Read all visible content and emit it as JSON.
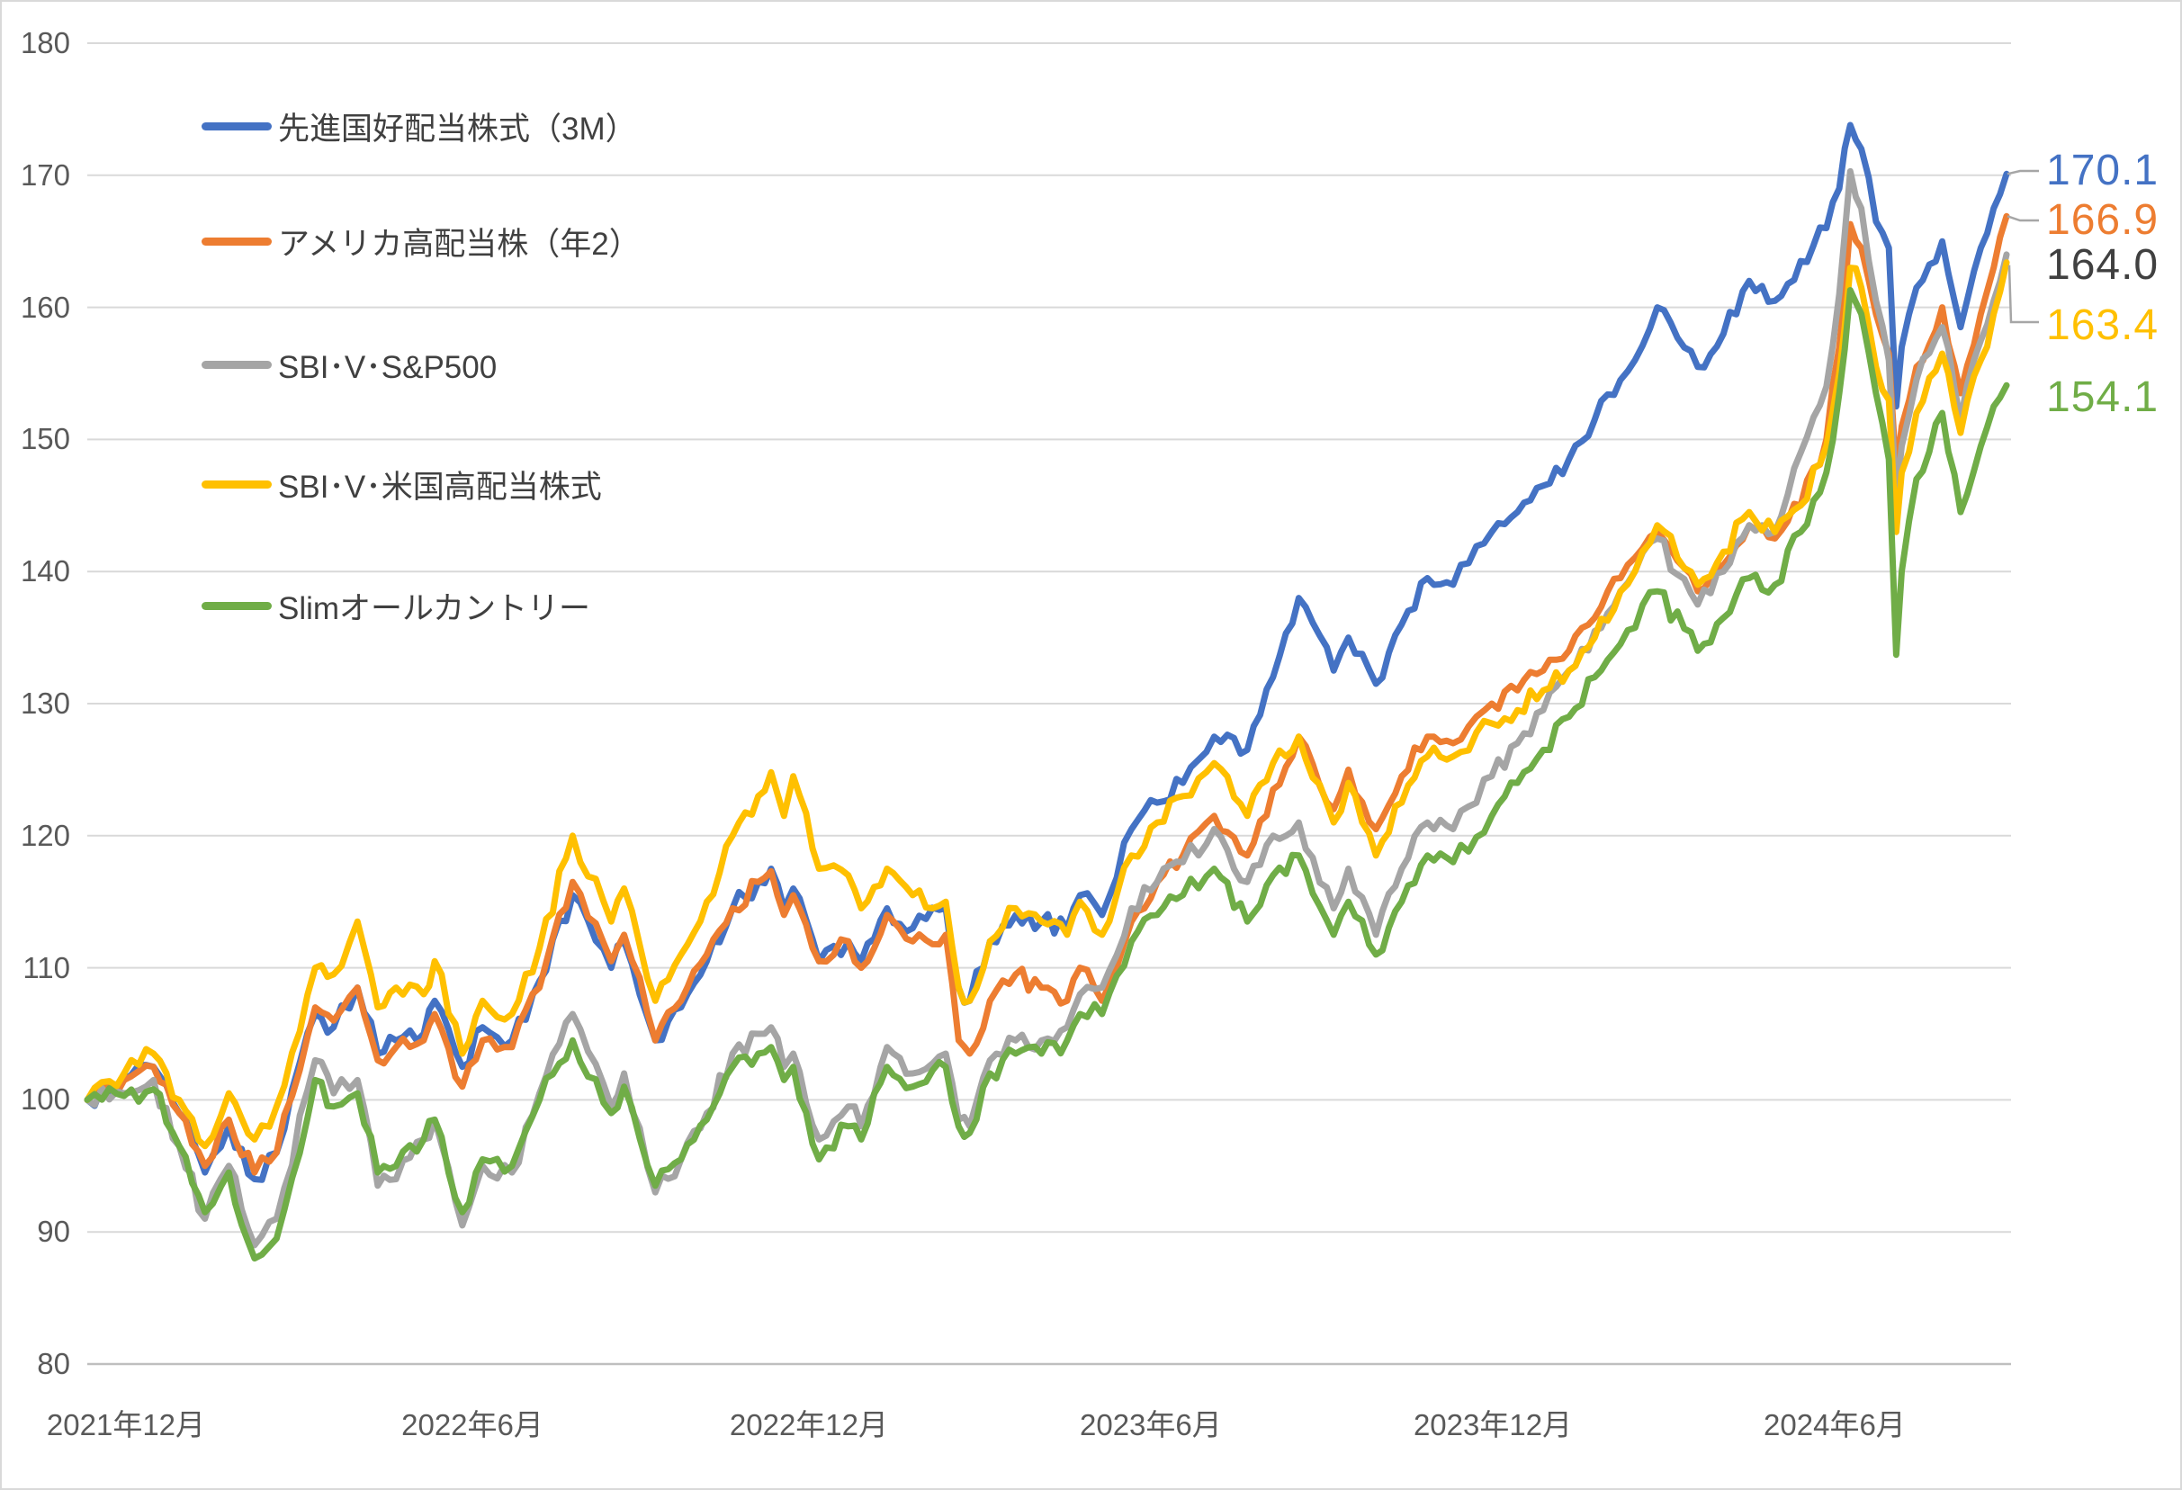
{
  "chart_data": {
    "type": "line",
    "title": "",
    "legend_position": "upper-left-inside",
    "grid": true,
    "y_axis": {
      "min": 80,
      "max": 180,
      "step": 10,
      "tick_labels": [
        "180",
        "170",
        "160",
        "150",
        "140",
        "130",
        "120",
        "110",
        "100",
        "90",
        "80"
      ]
    },
    "x_axis": {
      "tick_labels": [
        "2021年12月",
        "2022年6月",
        "2022年12月",
        "2023年6月",
        "2023年12月",
        "2024年6月"
      ]
    },
    "start_value": 100,
    "dates": [
      "2021-11-25",
      "2021-12-15",
      "2021-12-31",
      "2022-01-14",
      "2022-01-28",
      "2022-02-10",
      "2022-02-24",
      "2022-03-08",
      "2022-03-29",
      "2022-04-08",
      "2022-04-21",
      "2022-05-02",
      "2022-05-12",
      "2022-05-27",
      "2022-06-02",
      "2022-06-17",
      "2022-06-28",
      "2022-07-14",
      "2022-07-29",
      "2022-08-16",
      "2022-09-06",
      "2022-09-13",
      "2022-09-30",
      "2022-10-14",
      "2022-10-28",
      "2022-11-11",
      "2022-11-25",
      "2022-12-02",
      "2022-12-09",
      "2022-12-14",
      "2022-12-28",
      "2023-01-13",
      "2023-01-20",
      "2023-02-03",
      "2023-02-17",
      "2023-03-07",
      "2023-03-14",
      "2023-03-20",
      "2023-03-31",
      "2023-04-14",
      "2023-04-28",
      "2023-05-12",
      "2023-05-19",
      "2023-05-31",
      "2023-06-16",
      "2023-06-30",
      "2023-07-14",
      "2023-07-31",
      "2023-08-18",
      "2023-09-01",
      "2023-09-15",
      "2023-10-04",
      "2023-10-12",
      "2023-10-27",
      "2023-11-10",
      "2023-11-24",
      "2023-12-08",
      "2023-12-29",
      "2024-01-12",
      "2024-01-26",
      "2024-02-09",
      "2024-02-23",
      "2024-03-08",
      "2024-03-28",
      "2024-04-19",
      "2024-05-03",
      "2024-05-17",
      "2024-05-31",
      "2024-06-14",
      "2024-06-28",
      "2024-07-05",
      "2024-07-11",
      "2024-07-17",
      "2024-07-25",
      "2024-08-01",
      "2024-08-05",
      "2024-08-08",
      "2024-08-16",
      "2024-08-30",
      "2024-09-09",
      "2024-09-20",
      "2024-09-27",
      "2024-10-04"
    ],
    "series": [
      {
        "name": "先進国好配当株式（3M）",
        "color": "#4472C4",
        "end_label": "170.1",
        "end_label_color": "#4472C4",
        "values": [
          100,
          101.5,
          102.5,
          99,
          94.5,
          98,
          94,
          96,
          106.5,
          105.5,
          108.5,
          103.5,
          104.5,
          105,
          107.5,
          102.5,
          105.5,
          104.5,
          109,
          115.5,
          110,
          112,
          104.5,
          107,
          110.5,
          114.5,
          116.5,
          117.5,
          114.5,
          116,
          110.5,
          112,
          110.5,
          114.5,
          113,
          114.5,
          108.5,
          107.5,
          112,
          114,
          113.5,
          113,
          115.5,
          114,
          120.5,
          122.5,
          124,
          127.5,
          126.5,
          132,
          138,
          132.5,
          135,
          131.5,
          136,
          139.5,
          139,
          143,
          144.5,
          146.5,
          148.5,
          151.5,
          154.5,
          160,
          155.5,
          158,
          162,
          160.5,
          163.5,
          166,
          169,
          173.8,
          172,
          166.5,
          164.5,
          152.5,
          157,
          161.5,
          165,
          158.5,
          164.5,
          167.5,
          170.1
        ]
      },
      {
        "name": "アメリカ高配当株（年2）",
        "color": "#ED7D31",
        "end_label": "166.9",
        "end_label_color": "#ED7D31",
        "values": [
          100,
          101.5,
          102.5,
          99,
          95,
          98.5,
          94.5,
          96,
          107,
          106,
          108.5,
          103,
          104,
          104.5,
          106.5,
          101,
          104.5,
          104,
          108.5,
          116.5,
          110.5,
          112.5,
          104.5,
          107.5,
          111,
          114.5,
          116.5,
          117.3,
          114,
          115.5,
          110.5,
          112,
          110,
          114,
          112,
          112.5,
          104.5,
          103.5,
          107.5,
          109.5,
          108.5,
          107.5,
          110,
          107.5,
          113.5,
          116.5,
          118.5,
          121.5,
          118.5,
          123.5,
          127.5,
          122,
          125,
          120.5,
          124.5,
          127.5,
          127,
          130,
          131,
          132.5,
          134,
          136.5,
          139.5,
          143,
          138.5,
          140.5,
          143.5,
          142.5,
          145,
          150,
          157,
          166.3,
          164.5,
          159.5,
          156.5,
          147.5,
          151,
          155.5,
          160,
          153.5,
          159.5,
          163,
          166.9
        ]
      },
      {
        "name": "SBI･V･S&P500",
        "color": "#A5A5A5",
        "end_label": "164.0",
        "end_label_color": "#404040",
        "values": [
          100,
          100.5,
          101.5,
          96.5,
          91,
          95,
          89,
          91,
          103,
          100.5,
          101.5,
          93.5,
          94,
          97,
          98.5,
          90.5,
          95,
          94.5,
          100.5,
          106.5,
          99.5,
          102,
          93,
          95.5,
          99,
          103.5,
          105,
          105.5,
          102.5,
          103.5,
          97,
          99.5,
          98,
          104,
          102,
          103.5,
          98.5,
          98,
          103,
          104.5,
          104.5,
          105.5,
          108,
          108.5,
          114.5,
          116.5,
          118,
          120.5,
          116.5,
          120,
          121,
          114.5,
          117.5,
          112.5,
          117.5,
          121,
          120.5,
          124.5,
          127,
          129.5,
          132.5,
          135.5,
          138.5,
          142.5,
          137.5,
          140,
          143.5,
          143,
          149,
          154,
          161,
          170.3,
          167.5,
          160.5,
          156,
          145.5,
          149.5,
          154.5,
          158.5,
          151.5,
          157.5,
          160.5,
          164
        ]
      },
      {
        "name": "SBI･V･米国高配当株式",
        "color": "#FFC000",
        "end_label": "163.4",
        "end_label_color": "#FFC000",
        "values": [
          100,
          102,
          103.5,
          100,
          96.5,
          100.5,
          97,
          99.5,
          110,
          109.5,
          113.5,
          107,
          108.5,
          108,
          110.5,
          103.5,
          107.5,
          106.5,
          111.5,
          120,
          113.5,
          116,
          107.5,
          111,
          115,
          120,
          123,
          124.8,
          121.5,
          124.5,
          117.5,
          117,
          114.5,
          117.5,
          115.5,
          115,
          108.5,
          107.5,
          112,
          114.5,
          113.5,
          112.5,
          115,
          112.5,
          118.5,
          121,
          123,
          125.5,
          121.5,
          125.5,
          127.5,
          121,
          124,
          118.5,
          122.5,
          126,
          126,
          128.5,
          129.5,
          131,
          132.5,
          135,
          138.5,
          143.5,
          139,
          141.5,
          144.5,
          143,
          145,
          149.5,
          155,
          163,
          161.5,
          155.5,
          153,
          143,
          147.5,
          152,
          156.5,
          150.5,
          156,
          159.5,
          163.4
        ]
      },
      {
        "name": "Slimオールカントリー",
        "color": "#70AD47",
        "end_label": "154.1",
        "end_label_color": "#70AD47",
        "values": [
          100,
          100.3,
          100.8,
          96.5,
          91.5,
          94.5,
          88,
          89.5,
          101.5,
          99.5,
          100.5,
          94.5,
          95,
          97,
          98.5,
          91.5,
          95.5,
          95,
          100,
          104.5,
          99,
          101,
          93.5,
          95.5,
          98.5,
          102.5,
          103.5,
          104,
          101.5,
          102.5,
          95.5,
          98,
          97,
          102.5,
          101,
          102.5,
          98,
          97.5,
          102,
          103.5,
          103.5,
          104.5,
          106.5,
          106.5,
          112,
          114,
          115.5,
          117.5,
          113.5,
          117,
          118.5,
          112.5,
          115,
          111,
          115,
          118.5,
          118,
          121.5,
          124,
          126.5,
          129,
          132,
          134.5,
          138.5,
          134,
          136.5,
          139.5,
          139,
          143,
          147.5,
          153.5,
          161.3,
          159.5,
          153.5,
          148.5,
          133.7,
          140,
          147,
          152,
          144.5,
          149.5,
          152.5,
          154.1
        ]
      }
    ],
    "colors": {
      "gridline": "#D9D9D9",
      "axis_line": "#BFBFBF",
      "axis_text": "#595959",
      "legend_text": "#404040",
      "leader_line": "#A6A6A6"
    }
  }
}
